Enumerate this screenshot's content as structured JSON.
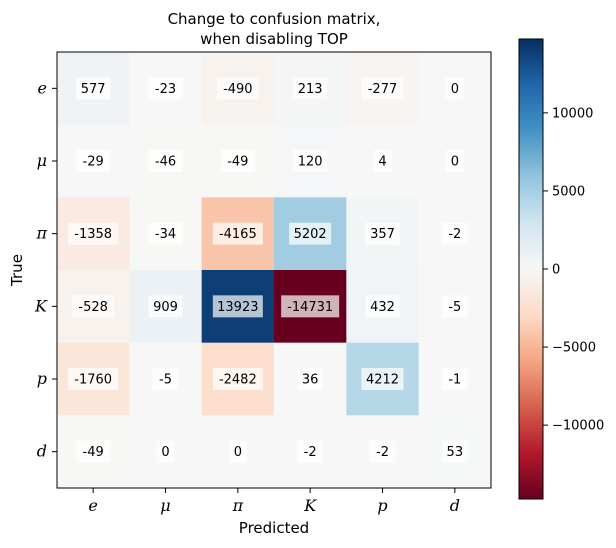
{
  "chart_data": {
    "type": "heatmap",
    "title_lines": [
      "Change to confusion matrix,",
      "when disabling TOP"
    ],
    "xlabel": "Predicted",
    "ylabel": "True",
    "x_categories": [
      "e",
      "μ",
      "π",
      "K",
      "p",
      "d"
    ],
    "y_categories": [
      "e",
      "μ",
      "π",
      "K",
      "p",
      "d"
    ],
    "values": [
      [
        577,
        -23,
        -490,
        213,
        -277,
        0
      ],
      [
        -29,
        -46,
        -49,
        120,
        4,
        0
      ],
      [
        -1358,
        -34,
        -4165,
        5202,
        357,
        -2
      ],
      [
        -528,
        909,
        13923,
        -14731,
        432,
        -5
      ],
      [
        -1760,
        -5,
        -2482,
        36,
        4212,
        -1
      ],
      [
        -49,
        0,
        0,
        -2,
        -2,
        53
      ]
    ],
    "colormap": "RdBu",
    "color_range": [
      -14731,
      14731
    ],
    "colorbar_ticks": [
      10000,
      5000,
      0,
      -5000,
      -10000
    ],
    "colorbar_tick_labels": [
      "10000",
      "5000",
      "0",
      "−5000",
      "−10000"
    ]
  }
}
